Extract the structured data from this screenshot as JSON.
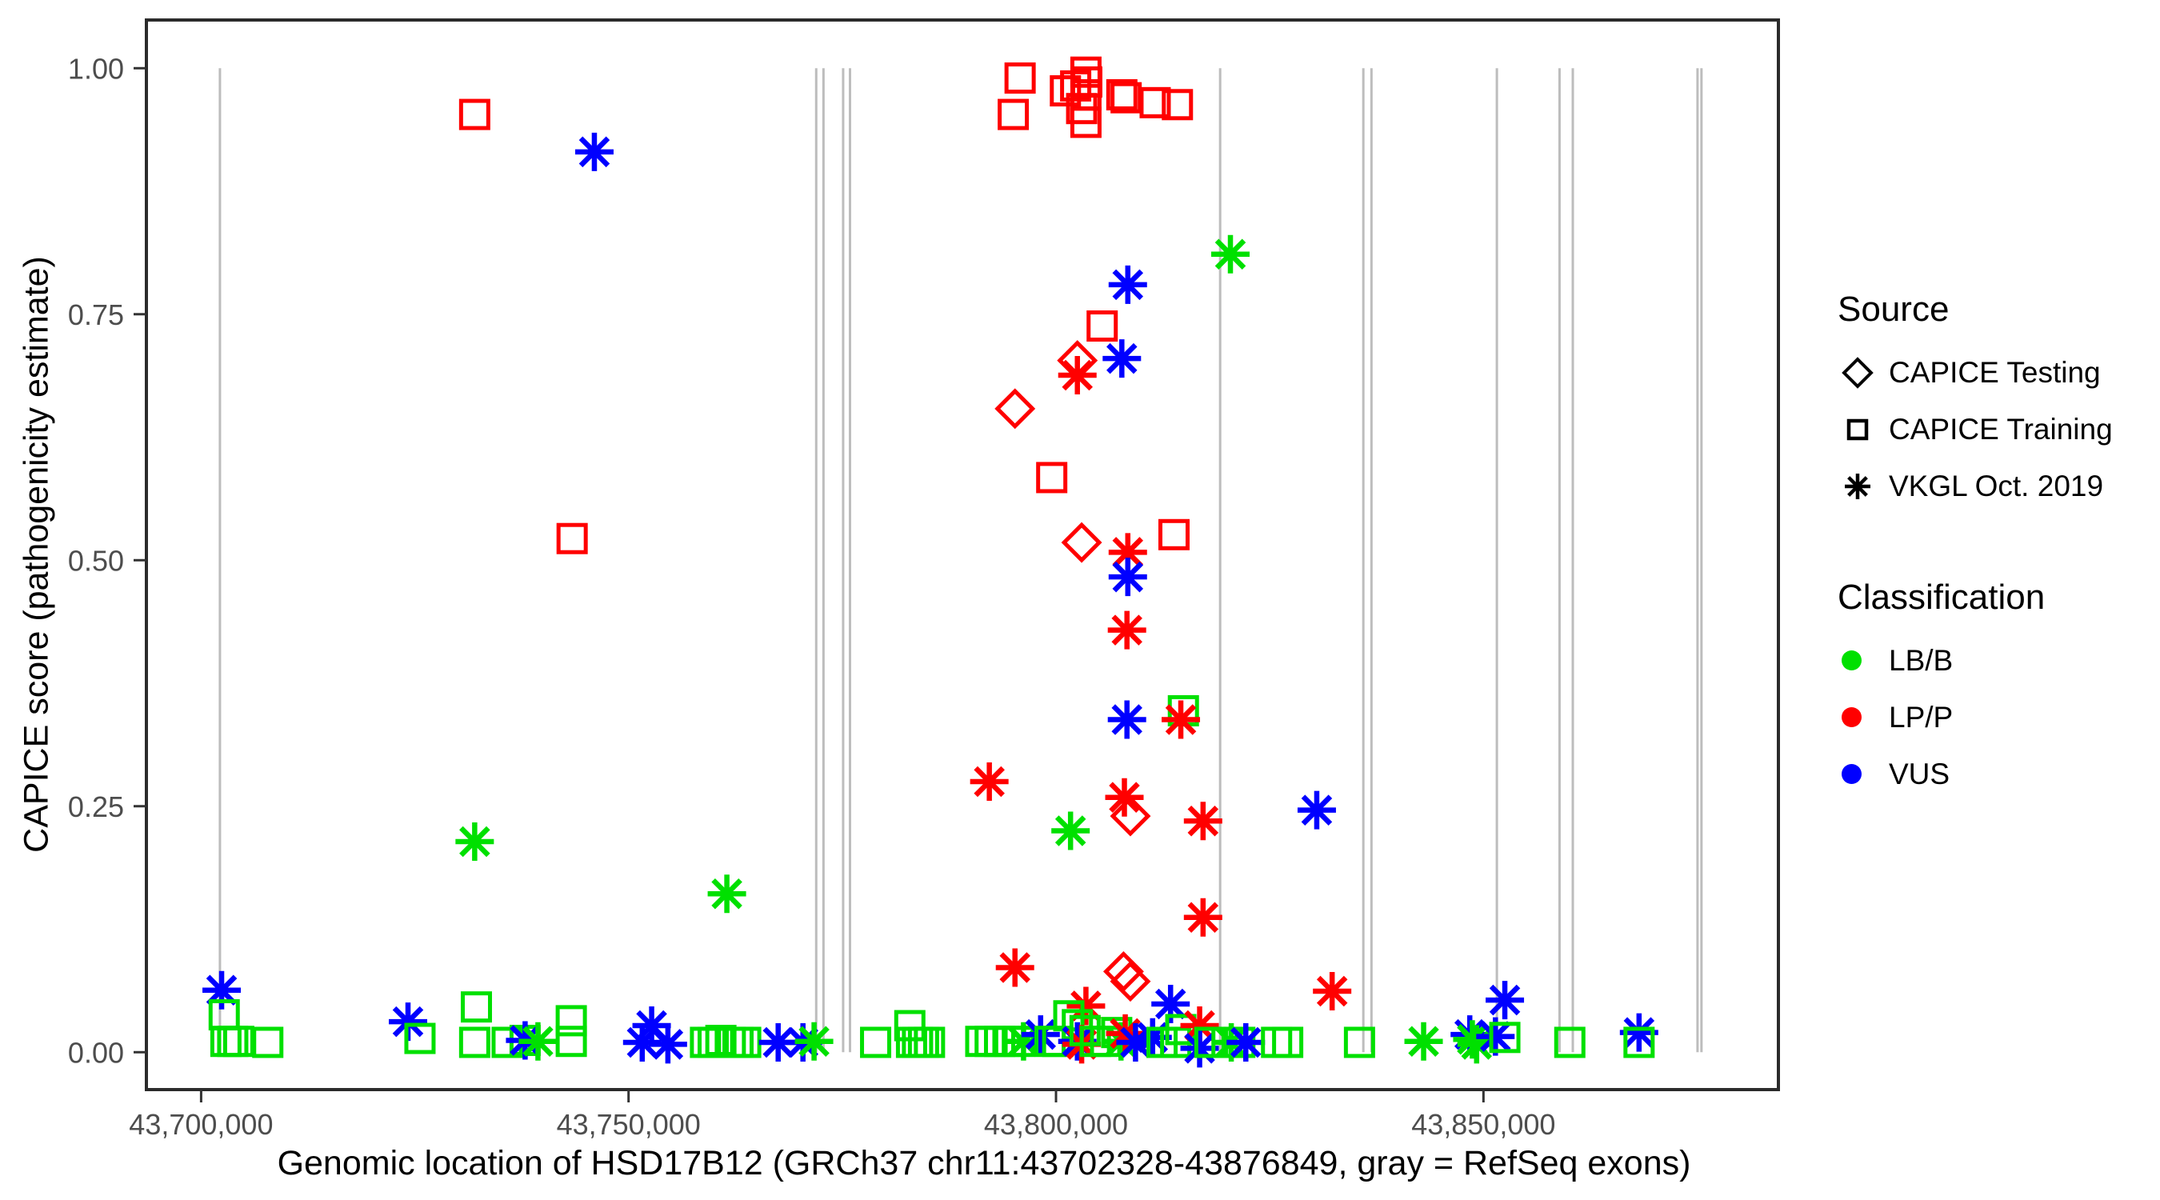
{
  "chart_data": {
    "type": "scatter",
    "x_axis": {
      "label": "Genomic location of HSD17B12 (GRCh37 chr11:43702328-43876849, gray = RefSeq exons)",
      "ticks": [
        43700000,
        43750000,
        43800000,
        43850000
      ],
      "tick_labels": [
        "43,700,000",
        "43,750,000",
        "43,800,000",
        "43,850,000"
      ],
      "range": [
        43693600,
        43884500
      ]
    },
    "y_axis": {
      "label": "CAPICE score (pathogenicity estimate)",
      "ticks": [
        0,
        0.25,
        0.5,
        0.75,
        1
      ],
      "tick_labels": [
        "0.00",
        "0.25",
        "0.50",
        "0.75",
        "1.00"
      ],
      "range": [
        -0.038,
        1.049
      ]
    },
    "colors": {
      "LBB": "#00e000",
      "LPP": "#ff0000",
      "VUS": "#0000ff"
    },
    "exon_color": "#bdbdbd",
    "panel_border": "#2b2b2b",
    "legend_source": {
      "title": "Source",
      "items": [
        {
          "label": "CAPICE Testing",
          "marker": "diamond"
        },
        {
          "label": "CAPICE Training",
          "marker": "square"
        },
        {
          "label": "VKGL Oct. 2019",
          "marker": "asterisk"
        }
      ]
    },
    "legend_classification": {
      "title": "Classification",
      "items": [
        {
          "label": "LB/B",
          "key": "LBB"
        },
        {
          "label": "LP/P",
          "key": "LPP"
        },
        {
          "label": "VUS",
          "key": "VUS"
        }
      ]
    },
    "exons": [
      43702200,
      43771950,
      43772800,
      43775100,
      43775900,
      43819200,
      43835950,
      43836900,
      43851570,
      43858900,
      43860450,
      43875040,
      43875500
    ],
    "points": [
      [
        43795800,
        0.99,
        "sq",
        "LPP"
      ],
      [
        43795000,
        0.953,
        "sq",
        "LPP"
      ],
      [
        43801100,
        0.977,
        "sq",
        "LPP"
      ],
      [
        43803500,
        0.996,
        "sq",
        "LPP"
      ],
      [
        43802300,
        0.982,
        "sq",
        "LPP"
      ],
      [
        43803600,
        0.986,
        "sq",
        "LPP"
      ],
      [
        43803500,
        0.973,
        "sq",
        "LPP"
      ],
      [
        43803000,
        0.959,
        "sq",
        "LPP"
      ],
      [
        43803500,
        0.945,
        "sq",
        "LPP"
      ],
      [
        43807700,
        0.973,
        "sq",
        "LPP"
      ],
      [
        43808200,
        0.97,
        "sq",
        "LPP"
      ],
      [
        43811600,
        0.965,
        "sq",
        "LPP"
      ],
      [
        43814200,
        0.963,
        "sq",
        "LPP"
      ],
      [
        43732000,
        0.953,
        "sq",
        "LPP"
      ],
      [
        43746000,
        0.915,
        "as",
        "VUS"
      ],
      [
        43743400,
        0.522,
        "sq",
        "LPP"
      ],
      [
        43732000,
        0.214,
        "as",
        "LBB"
      ],
      [
        43761500,
        0.161,
        "as",
        "LBB"
      ],
      [
        43820400,
        0.811,
        "as",
        "LBB"
      ],
      [
        43808400,
        0.78,
        "as",
        "VUS"
      ],
      [
        43805400,
        0.738,
        "sq",
        "LPP"
      ],
      [
        43807700,
        0.705,
        "as",
        "VUS"
      ],
      [
        43802500,
        0.703,
        "di",
        "LPP"
      ],
      [
        43802500,
        0.688,
        "as",
        "LPP"
      ],
      [
        43795200,
        0.654,
        "di",
        "LPP"
      ],
      [
        43799500,
        0.584,
        "sq",
        "LPP"
      ],
      [
        43803000,
        0.518,
        "di",
        "LPP"
      ],
      [
        43808400,
        0.508,
        "as",
        "LPP"
      ],
      [
        43813800,
        0.526,
        "sq",
        "LPP"
      ],
      [
        43808400,
        0.483,
        "as",
        "VUS"
      ],
      [
        43808300,
        0.429,
        "as",
        "LPP"
      ],
      [
        43808300,
        0.338,
        "as",
        "VUS"
      ],
      [
        43814900,
        0.347,
        "sq",
        "LBB"
      ],
      [
        43814600,
        0.338,
        "as",
        "LPP"
      ],
      [
        43792200,
        0.275,
        "as",
        "LPP"
      ],
      [
        43808000,
        0.259,
        "as",
        "LPP"
      ],
      [
        43808700,
        0.24,
        "di",
        "LPP"
      ],
      [
        43801700,
        0.225,
        "as",
        "LBB"
      ],
      [
        43817200,
        0.235,
        "as",
        "LPP"
      ],
      [
        43830500,
        0.246,
        "as",
        "VUS"
      ],
      [
        43817200,
        0.137,
        "as",
        "LPP"
      ],
      [
        43795200,
        0.086,
        "as",
        "LPP"
      ],
      [
        43807900,
        0.082,
        "di",
        "LPP"
      ],
      [
        43808700,
        0.072,
        "di",
        "LPP"
      ],
      [
        43803500,
        0.047,
        "as",
        "LPP"
      ],
      [
        43813400,
        0.049,
        "as",
        "VUS"
      ],
      [
        43832300,
        0.062,
        "as",
        "LPP"
      ],
      [
        43702400,
        0.063,
        "as",
        "VUS"
      ],
      [
        43702700,
        0.038,
        "sq",
        "LBB"
      ],
      [
        43702900,
        0.011,
        "sq",
        "LBB"
      ],
      [
        43703700,
        0.011,
        "sq",
        "LBB"
      ],
      [
        43704400,
        0.011,
        "sq",
        "LBB"
      ],
      [
        43707800,
        0.01,
        "sq",
        "LBB"
      ],
      [
        43724200,
        0.031,
        "as",
        "VUS"
      ],
      [
        43725600,
        0.014,
        "sq",
        "LBB"
      ],
      [
        43732200,
        0.046,
        "sq",
        "LBB"
      ],
      [
        43732000,
        0.01,
        "sq",
        "LBB"
      ],
      [
        43735800,
        0.01,
        "sq",
        "LBB"
      ],
      [
        43737900,
        0.012,
        "sq",
        "LBB"
      ],
      [
        43737900,
        0.012,
        "as",
        "VUS"
      ],
      [
        43739400,
        0.011,
        "as",
        "LBB"
      ],
      [
        43743300,
        0.032,
        "sq",
        "LBB"
      ],
      [
        43743300,
        0.011,
        "sq",
        "LBB"
      ],
      [
        43752700,
        0.027,
        "as",
        "VUS"
      ],
      [
        43751600,
        0.01,
        "as",
        "VUS"
      ],
      [
        43754600,
        0.008,
        "as",
        "VUS"
      ],
      [
        43759000,
        0.01,
        "sq",
        "LBB"
      ],
      [
        43759900,
        0.01,
        "sq",
        "LBB"
      ],
      [
        43760800,
        0.012,
        "sq",
        "LBB"
      ],
      [
        43761900,
        0.01,
        "sq",
        "LBB"
      ],
      [
        43762800,
        0.01,
        "sq",
        "LBB"
      ],
      [
        43763700,
        0.01,
        "sq",
        "LBB"
      ],
      [
        43767500,
        0.01,
        "as",
        "VUS"
      ],
      [
        43770400,
        0.01,
        "as",
        "VUS"
      ],
      [
        43771700,
        0.011,
        "as",
        "LBB"
      ],
      [
        43778900,
        0.01,
        "sq",
        "LBB"
      ],
      [
        43782900,
        0.027,
        "sq",
        "LBB"
      ],
      [
        43783100,
        0.01,
        "sq",
        "LBB"
      ],
      [
        43783800,
        0.01,
        "sq",
        "LBB"
      ],
      [
        43784500,
        0.01,
        "sq",
        "LBB"
      ],
      [
        43785200,
        0.01,
        "sq",
        "LBB"
      ],
      [
        43791200,
        0.011,
        "sq",
        "LBB"
      ],
      [
        43792300,
        0.011,
        "sq",
        "LBB"
      ],
      [
        43793400,
        0.011,
        "sq",
        "LBB"
      ],
      [
        43794600,
        0.011,
        "sq",
        "LBB"
      ],
      [
        43795700,
        0.011,
        "sq",
        "LBB"
      ],
      [
        43796200,
        0.011,
        "as",
        "LBB"
      ],
      [
        43798200,
        0.018,
        "as",
        "VUS"
      ],
      [
        43799300,
        0.011,
        "sq",
        "LBB"
      ],
      [
        43800200,
        0.011,
        "sq",
        "LBB"
      ],
      [
        43801500,
        0.037,
        "sq",
        "LBB"
      ],
      [
        43802500,
        0.028,
        "sq",
        "LBB"
      ],
      [
        43802500,
        0.011,
        "as",
        "VUS"
      ],
      [
        43803000,
        0.008,
        "as",
        "LPP"
      ],
      [
        43803400,
        0.022,
        "sq",
        "LBB"
      ],
      [
        43804600,
        0.011,
        "sq",
        "LBB"
      ],
      [
        43805800,
        0.011,
        "sq",
        "LBB"
      ],
      [
        43807100,
        0.02,
        "sq",
        "LBB"
      ],
      [
        43807600,
        0.011,
        "as",
        "LBB"
      ],
      [
        43808100,
        0.019,
        "as",
        "LPP"
      ],
      [
        43809300,
        0.01,
        "as",
        "VUS"
      ],
      [
        43811300,
        0.015,
        "as",
        "VUS"
      ],
      [
        43812400,
        0.01,
        "sq",
        "LBB"
      ],
      [
        43814000,
        0.01,
        "sq",
        "LBB"
      ],
      [
        43814600,
        0.023,
        "sq",
        "LBB"
      ],
      [
        43816800,
        0.027,
        "as",
        "LPP"
      ],
      [
        43816800,
        0.004,
        "as",
        "VUS"
      ],
      [
        43818000,
        0.01,
        "sq",
        "LBB"
      ],
      [
        43820000,
        0.01,
        "sq",
        "LBB"
      ],
      [
        43820500,
        0.01,
        "as",
        "LBB"
      ],
      [
        43821500,
        0.01,
        "sq",
        "LBB"
      ],
      [
        43822200,
        0.01,
        "as",
        "VUS"
      ],
      [
        43825800,
        0.01,
        "sq",
        "LBB"
      ],
      [
        43827100,
        0.01,
        "sq",
        "LBB"
      ],
      [
        43835500,
        0.01,
        "sq",
        "LBB"
      ],
      [
        43843000,
        0.011,
        "as",
        "LBB"
      ],
      [
        43848400,
        0.018,
        "as",
        "VUS"
      ],
      [
        43848700,
        0.013,
        "as",
        "LBB"
      ],
      [
        43849200,
        0.008,
        "as",
        "LBB"
      ],
      [
        43851400,
        0.016,
        "as",
        "VUS"
      ],
      [
        43852500,
        0.015,
        "sq",
        "LBB"
      ],
      [
        43852500,
        0.053,
        "as",
        "VUS"
      ],
      [
        43860100,
        0.01,
        "sq",
        "LBB"
      ],
      [
        43868200,
        0.02,
        "as",
        "VUS"
      ],
      [
        43868200,
        0.01,
        "sq",
        "LBB"
      ]
    ]
  }
}
